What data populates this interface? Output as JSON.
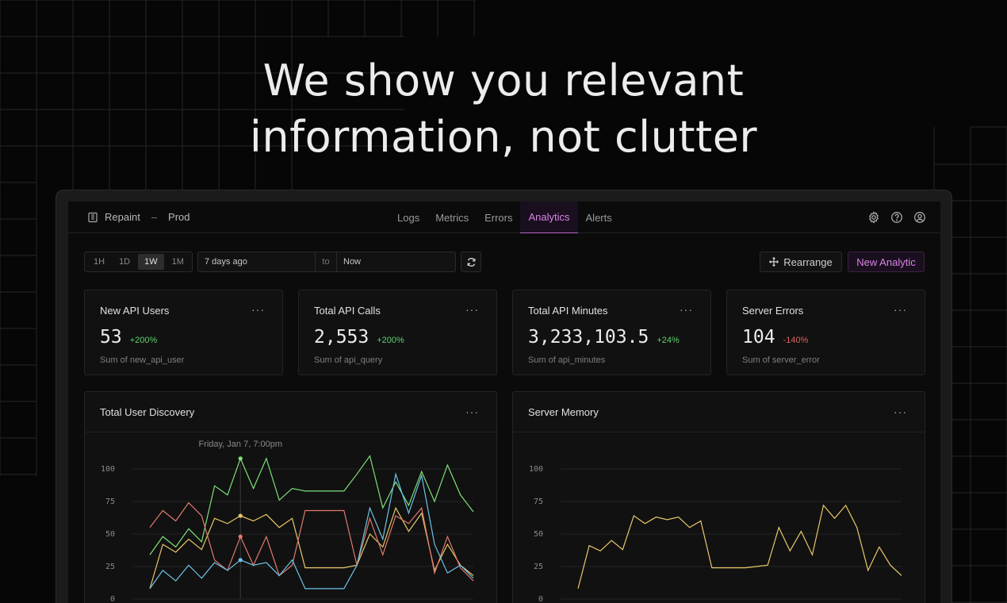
{
  "hero": {
    "line1": "We show you relevant",
    "line2": "information, not clutter"
  },
  "navbar": {
    "brand": "Repaint",
    "separator": "–",
    "environment": "Prod",
    "tabs": [
      {
        "label": "Logs",
        "active": false
      },
      {
        "label": "Metrics",
        "active": false
      },
      {
        "label": "Errors",
        "active": false
      },
      {
        "label": "Analytics",
        "active": true
      },
      {
        "label": "Alerts",
        "active": false
      }
    ],
    "icons": [
      "settings-icon",
      "help-icon",
      "user-icon"
    ]
  },
  "toolbar": {
    "ranges": [
      {
        "label": "1H",
        "active": false
      },
      {
        "label": "1D",
        "active": false
      },
      {
        "label": "1W",
        "active": true
      },
      {
        "label": "1M",
        "active": false
      }
    ],
    "date_from": "7 days ago",
    "date_to_label": "to",
    "date_to": "Now",
    "rearrange_label": "Rearrange",
    "new_analytic_label": "New Analytic"
  },
  "stats": [
    {
      "title": "New API Users",
      "value": "53",
      "delta": "+200%",
      "trend": "up",
      "sub": "Sum of new_api_user"
    },
    {
      "title": "Total API Calls",
      "value": "2,553",
      "delta": "+200%",
      "trend": "up",
      "sub": "Sum of api_query"
    },
    {
      "title": "Total API Minutes",
      "value": "3,233,103.5",
      "delta": "+24%",
      "trend": "up",
      "sub": "Sum of api_minutes"
    },
    {
      "title": "Server Errors",
      "value": "104",
      "delta": "-140%",
      "trend": "down",
      "sub": "Sum of server_error"
    }
  ],
  "menu_glyph": "···",
  "colors": {
    "accent": "#d884e6",
    "green": "#7ee07a",
    "yellow": "#e8c86a",
    "red": "#e07a6e",
    "blue": "#6ec3e8"
  },
  "chart_data": [
    {
      "type": "line",
      "title": "Total User Discovery",
      "ylim": [
        0,
        100
      ],
      "yticks": [
        0,
        25,
        50,
        75,
        100
      ],
      "tooltip": {
        "label": "Friday, Jan 7, 7:00pm",
        "index": 7
      },
      "series": [
        {
          "color": "#7ee07a",
          "values": [
            34,
            48,
            40,
            54,
            44,
            87,
            80,
            108,
            85,
            108,
            76,
            85,
            83,
            83,
            83,
            83,
            96,
            110,
            70,
            90,
            72,
            98,
            75,
            103,
            80,
            67
          ]
        },
        {
          "color": "#e8c86a",
          "values": [
            8,
            42,
            36,
            46,
            38,
            62,
            58,
            64,
            60,
            65,
            55,
            62,
            24,
            24,
            24,
            24,
            26,
            50,
            40,
            70,
            52,
            66,
            22,
            42,
            26,
            18
          ]
        },
        {
          "color": "#e07a6e",
          "values": [
            55,
            68,
            60,
            74,
            64,
            30,
            22,
            48,
            26,
            48,
            18,
            26,
            68,
            68,
            68,
            68,
            26,
            62,
            34,
            64,
            58,
            70,
            20,
            48,
            24,
            14
          ]
        },
        {
          "color": "#6ec3e8",
          "values": [
            8,
            22,
            14,
            26,
            16,
            28,
            22,
            30,
            26,
            28,
            18,
            30,
            8,
            8,
            8,
            8,
            26,
            70,
            46,
            96,
            66,
            95,
            42,
            20,
            26,
            16
          ]
        }
      ]
    },
    {
      "type": "line",
      "title": "Server Memory",
      "ylim": [
        0,
        100
      ],
      "yticks": [
        0,
        25,
        50,
        75,
        100
      ],
      "series": [
        {
          "color": "#e8c86a",
          "values": [
            8,
            41,
            37,
            45,
            38,
            64,
            58,
            63,
            61,
            63,
            55,
            60,
            24,
            24,
            24,
            24,
            25,
            26,
            55,
            37,
            52,
            34,
            72,
            62,
            72,
            55,
            22,
            40,
            26,
            18
          ]
        }
      ]
    }
  ]
}
